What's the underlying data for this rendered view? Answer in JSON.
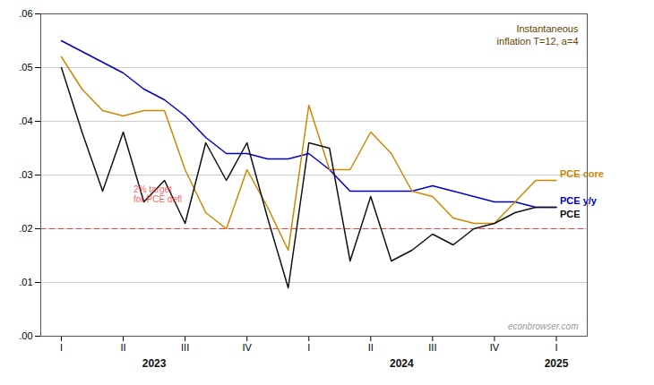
{
  "chart_data": {
    "type": "line",
    "x": [
      0,
      1,
      2,
      3,
      4,
      5,
      6,
      7,
      8,
      9,
      10,
      11,
      12,
      13,
      14,
      15,
      16,
      17,
      18,
      19,
      20,
      21,
      22,
      23,
      24
    ],
    "series": [
      {
        "name": "PCE y/y",
        "color": "#0000cc",
        "values": [
          0.055,
          0.053,
          0.051,
          0.049,
          0.046,
          0.044,
          0.041,
          0.037,
          0.034,
          0.034,
          0.033,
          0.033,
          0.034,
          0.031,
          0.027,
          0.027,
          0.027,
          0.027,
          0.028,
          0.027,
          0.026,
          0.025,
          0.025,
          0.024,
          0.024
        ]
      },
      {
        "name": "PCE core",
        "color": "#cc8800",
        "values": [
          0.052,
          0.046,
          0.042,
          0.041,
          0.042,
          0.042,
          0.031,
          0.023,
          0.02,
          0.031,
          0.024,
          0.016,
          0.043,
          0.031,
          0.031,
          0.038,
          0.034,
          0.027,
          0.026,
          0.022,
          0.021,
          0.021,
          0.025,
          0.029,
          0.029
        ]
      },
      {
        "name": "PCE",
        "color": "#111111",
        "values": [
          0.05,
          0.038,
          0.027,
          0.038,
          0.025,
          0.029,
          0.021,
          0.036,
          0.029,
          0.036,
          0.022,
          0.009,
          0.036,
          0.035,
          0.014,
          0.026,
          0.014,
          0.016,
          0.019,
          0.017,
          0.02,
          0.021,
          0.023,
          0.024,
          0.024
        ]
      }
    ],
    "xlim": [
      -1.0,
      25.5
    ],
    "xticks": [
      {
        "value": 0,
        "label": "I"
      },
      {
        "value": 3,
        "label": "II"
      },
      {
        "value": 6,
        "label": "III"
      },
      {
        "value": 9,
        "label": "IV"
      },
      {
        "value": 12,
        "label": "I"
      },
      {
        "value": 15,
        "label": "II"
      },
      {
        "value": 18,
        "label": "III"
      },
      {
        "value": 21,
        "label": "IV"
      },
      {
        "value": 24,
        "label": "I"
      }
    ],
    "ylim": [
      0.0,
      0.06
    ],
    "yticks": [
      {
        "value": 0.0,
        "label": ".00"
      },
      {
        "value": 0.01,
        "label": ".01"
      },
      {
        "value": 0.02,
        "label": ".02"
      },
      {
        "value": 0.03,
        "label": ".03"
      },
      {
        "value": 0.04,
        "label": ".04"
      },
      {
        "value": 0.05,
        "label": ".05"
      },
      {
        "value": 0.06,
        "label": ".06"
      }
    ],
    "grid": true,
    "reference_lines": [
      {
        "y": 0.02,
        "color": "#ff3333",
        "line_style": "dashed"
      }
    ],
    "annotations": [
      {
        "text": "2% target\nfor PCE defl",
        "x": 3.5,
        "y": 0.028,
        "color": "#ff3333"
      },
      {
        "text": "2023",
        "x": 4.5
      },
      {
        "text": "2024",
        "x": 16.5
      },
      {
        "text": "2025",
        "x": 24
      }
    ],
    "note": {
      "text": "Instantaneous\ninflation T=12, a=4",
      "color": "#664400"
    },
    "watermark": "econbrowser.com"
  }
}
